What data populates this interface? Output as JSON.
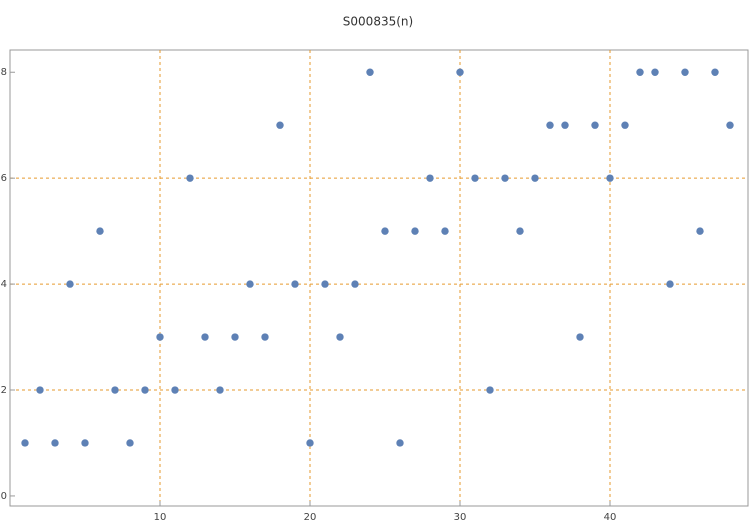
{
  "chart_data": {
    "type": "scatter",
    "title": "S000835(n)",
    "x": [
      1,
      2,
      3,
      4,
      5,
      6,
      7,
      8,
      9,
      10,
      11,
      12,
      13,
      14,
      15,
      16,
      17,
      18,
      19,
      20,
      21,
      22,
      23,
      24,
      25,
      26,
      27,
      28,
      29,
      30,
      31,
      32,
      33,
      34,
      35,
      36,
      37,
      38,
      39,
      40,
      41,
      42,
      43,
      44,
      45,
      46,
      47,
      48
    ],
    "values": [
      1,
      2,
      1,
      4,
      1,
      5,
      2,
      1,
      2,
      3,
      2,
      6,
      3,
      2,
      3,
      4,
      3,
      7,
      4,
      1,
      4,
      3,
      4,
      8,
      5,
      1,
      5,
      6,
      5,
      8,
      6,
      2,
      6,
      5,
      6,
      7,
      7,
      3,
      7,
      6,
      7,
      8,
      8,
      4,
      8,
      5,
      8,
      7
    ],
    "color": "#5e81b5",
    "xlim": [
      0,
      49.2
    ],
    "ylim": [
      -0.19,
      8.42
    ],
    "xticks": [
      10,
      20,
      30,
      40
    ],
    "yticks": [
      0,
      2,
      4,
      6,
      8
    ],
    "xgrid": [
      10,
      20,
      30,
      40
    ],
    "ygrid": [
      2,
      4,
      6
    ],
    "grid_color": "#e69a2e"
  }
}
